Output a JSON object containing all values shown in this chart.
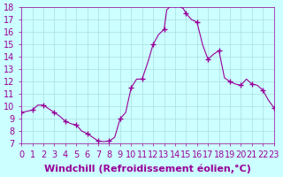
{
  "title": "",
  "xlabel": "Windchill (Refroidissement éolien,°C)",
  "ylabel": "",
  "xlim": [
    0,
    23
  ],
  "ylim": [
    7,
    18
  ],
  "yticks": [
    7,
    8,
    9,
    10,
    11,
    12,
    13,
    14,
    15,
    16,
    17,
    18
  ],
  "xticks": [
    0,
    1,
    2,
    3,
    4,
    5,
    6,
    7,
    8,
    9,
    10,
    11,
    12,
    13,
    14,
    15,
    16,
    17,
    18,
    19,
    20,
    21,
    22,
    23
  ],
  "line_color": "#990099",
  "marker_color": "#990099",
  "bg_color": "#ccffff",
  "grid_color": "#aadddd",
  "x": [
    0,
    0.5,
    1,
    1.5,
    2,
    2.5,
    3,
    3.5,
    4,
    4.5,
    5,
    5.5,
    6,
    6.5,
    7,
    7.5,
    8,
    8.5,
    9,
    9.5,
    10,
    10.5,
    11,
    11.5,
    12,
    12.5,
    13,
    13.25,
    13.5,
    13.75,
    14,
    14.25,
    14.5,
    14.75,
    15,
    15.5,
    16,
    16.5,
    17,
    17.5,
    18,
    18.5,
    19,
    19.5,
    20,
    20.5,
    21,
    21.5,
    22,
    22.5,
    23
  ],
  "y": [
    9.5,
    9.6,
    9.7,
    10.1,
    10.1,
    9.8,
    9.5,
    9.2,
    8.8,
    8.6,
    8.5,
    8.0,
    7.8,
    7.5,
    7.2,
    7.15,
    7.2,
    7.5,
    9.0,
    9.5,
    11.5,
    12.2,
    12.2,
    13.5,
    15.0,
    15.8,
    16.2,
    17.8,
    18.0,
    18.1,
    18.2,
    18.3,
    18.0,
    17.9,
    17.5,
    17.0,
    16.8,
    15.0,
    13.8,
    14.2,
    14.5,
    12.3,
    12.0,
    11.8,
    11.7,
    12.2,
    11.8,
    11.7,
    11.3,
    10.5,
    9.9
  ],
  "marker_x": [
    0,
    1,
    2,
    3,
    4,
    5,
    6,
    7,
    8,
    9,
    10,
    11,
    12,
    13,
    14,
    15,
    16,
    17,
    18,
    19,
    20,
    21,
    22,
    23
  ],
  "marker_y": [
    9.5,
    9.7,
    10.1,
    9.5,
    8.8,
    8.5,
    7.8,
    7.2,
    7.2,
    9.0,
    11.5,
    12.2,
    15.0,
    16.2,
    18.2,
    17.5,
    16.8,
    13.8,
    14.5,
    12.0,
    11.7,
    11.8,
    11.3,
    9.9
  ],
  "xlabel_fontsize": 8,
  "tick_fontsize": 7,
  "xlabel_bold": true
}
